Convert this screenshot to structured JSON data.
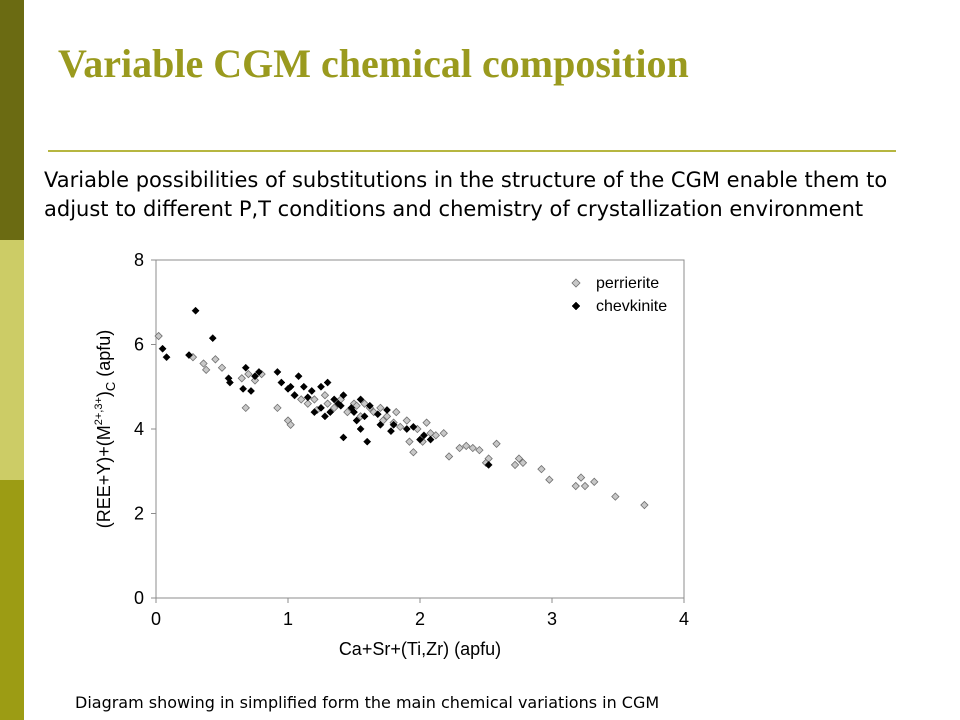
{
  "slide": {
    "title": "Variable CGM chemical composition",
    "body": "Variable possibilities of substitutions in the structure of the CGM enable them to adjust to different P,T conditions and chemistry of crystallization environment",
    "caption": "Diagram showing in simplified form the main chemical variations in CGM",
    "colors": {
      "title": "#9a9a1e",
      "rule": "#b6b640",
      "sidebar_dark": "#6b6b12",
      "sidebar_light": "#cccc66",
      "sidebar_mid": "#9c9c14"
    }
  },
  "chart_data": {
    "type": "scatter",
    "xlabel": "Ca+Sr+(Ti,Zr) (apfu)",
    "ylabel_main": "(REE+Y)+(M",
    "ylabel_sup": "2+,3+",
    "ylabel_close": ")",
    "ylabel_sub": "C",
    "ylabel_tail": " (apfu)",
    "xlim": [
      0,
      4
    ],
    "ylim": [
      0,
      8
    ],
    "xticks": [
      "0",
      "1",
      "2",
      "3",
      "4"
    ],
    "yticks": [
      "0",
      "2",
      "4",
      "6",
      "8"
    ],
    "grid": false,
    "legend": "top-right",
    "series": [
      {
        "name": "perrierite",
        "marker": "diamond-gray",
        "color": "#c8c8c8",
        "points": [
          [
            0.02,
            6.2
          ],
          [
            0.28,
            5.7
          ],
          [
            0.36,
            5.55
          ],
          [
            0.38,
            5.4
          ],
          [
            0.45,
            5.65
          ],
          [
            0.5,
            5.45
          ],
          [
            0.65,
            5.2
          ],
          [
            0.68,
            4.5
          ],
          [
            0.7,
            5.3
          ],
          [
            0.75,
            5.15
          ],
          [
            0.8,
            5.3
          ],
          [
            0.92,
            4.5
          ],
          [
            1.0,
            4.2
          ],
          [
            1.02,
            4.1
          ],
          [
            1.05,
            4.8
          ],
          [
            1.1,
            4.7
          ],
          [
            1.15,
            4.6
          ],
          [
            1.2,
            4.7
          ],
          [
            1.22,
            4.45
          ],
          [
            1.28,
            4.8
          ],
          [
            1.3,
            4.6
          ],
          [
            1.35,
            4.5
          ],
          [
            1.4,
            4.7
          ],
          [
            1.45,
            4.4
          ],
          [
            1.5,
            4.6
          ],
          [
            1.52,
            4.55
          ],
          [
            1.55,
            4.3
          ],
          [
            1.58,
            4.6
          ],
          [
            1.62,
            4.5
          ],
          [
            1.65,
            4.4
          ],
          [
            1.7,
            4.5
          ],
          [
            1.72,
            4.2
          ],
          [
            1.75,
            4.3
          ],
          [
            1.8,
            4.15
          ],
          [
            1.82,
            4.4
          ],
          [
            1.85,
            4.05
          ],
          [
            1.9,
            4.2
          ],
          [
            1.92,
            3.7
          ],
          [
            1.95,
            3.45
          ],
          [
            1.98,
            4.0
          ],
          [
            2.02,
            3.7
          ],
          [
            2.05,
            4.15
          ],
          [
            2.08,
            3.9
          ],
          [
            2.12,
            3.85
          ],
          [
            2.18,
            3.9
          ],
          [
            2.22,
            3.35
          ],
          [
            2.3,
            3.55
          ],
          [
            2.35,
            3.6
          ],
          [
            2.4,
            3.55
          ],
          [
            2.45,
            3.5
          ],
          [
            2.5,
            3.2
          ],
          [
            2.52,
            3.3
          ],
          [
            2.58,
            3.65
          ],
          [
            2.72,
            3.15
          ],
          [
            2.75,
            3.3
          ],
          [
            2.78,
            3.2
          ],
          [
            2.92,
            3.05
          ],
          [
            2.98,
            2.8
          ],
          [
            3.18,
            2.65
          ],
          [
            3.22,
            2.85
          ],
          [
            3.25,
            2.65
          ],
          [
            3.32,
            2.75
          ],
          [
            3.48,
            2.4
          ],
          [
            3.7,
            2.2
          ]
        ]
      },
      {
        "name": "chevkinite",
        "marker": "diamond-black",
        "color": "#000000",
        "points": [
          [
            0.05,
            5.9
          ],
          [
            0.08,
            5.7
          ],
          [
            0.25,
            5.75
          ],
          [
            0.3,
            6.8
          ],
          [
            0.43,
            6.15
          ],
          [
            0.55,
            5.2
          ],
          [
            0.56,
            5.1
          ],
          [
            0.66,
            4.95
          ],
          [
            0.68,
            5.45
          ],
          [
            0.72,
            4.9
          ],
          [
            0.75,
            5.25
          ],
          [
            0.78,
            5.35
          ],
          [
            0.92,
            5.35
          ],
          [
            0.95,
            5.1
          ],
          [
            1.0,
            4.95
          ],
          [
            1.02,
            5.0
          ],
          [
            1.05,
            4.8
          ],
          [
            1.08,
            5.25
          ],
          [
            1.12,
            5.0
          ],
          [
            1.15,
            4.75
          ],
          [
            1.18,
            4.9
          ],
          [
            1.2,
            4.4
          ],
          [
            1.25,
            4.5
          ],
          [
            1.25,
            5.0
          ],
          [
            1.28,
            4.3
          ],
          [
            1.3,
            5.1
          ],
          [
            1.32,
            4.4
          ],
          [
            1.35,
            4.7
          ],
          [
            1.38,
            4.6
          ],
          [
            1.4,
            4.55
          ],
          [
            1.42,
            4.8
          ],
          [
            1.42,
            3.8
          ],
          [
            1.48,
            4.5
          ],
          [
            1.5,
            4.4
          ],
          [
            1.52,
            4.2
          ],
          [
            1.55,
            4.7
          ],
          [
            1.55,
            4.0
          ],
          [
            1.58,
            4.3
          ],
          [
            1.6,
            3.7
          ],
          [
            1.62,
            4.55
          ],
          [
            1.68,
            4.35
          ],
          [
            1.7,
            4.1
          ],
          [
            1.75,
            4.45
          ],
          [
            1.78,
            3.95
          ],
          [
            1.8,
            4.1
          ],
          [
            1.9,
            4.0
          ],
          [
            1.95,
            4.05
          ],
          [
            2.0,
            3.75
          ],
          [
            2.03,
            3.85
          ],
          [
            2.08,
            3.75
          ],
          [
            2.52,
            3.15
          ]
        ]
      }
    ]
  }
}
